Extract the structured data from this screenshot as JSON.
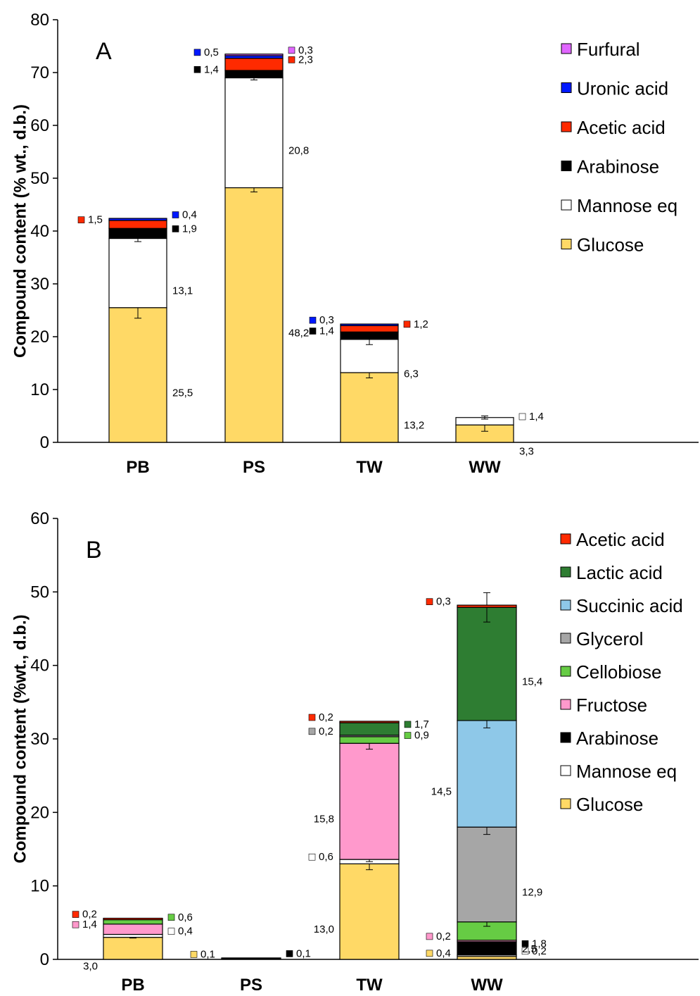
{
  "chart_data": [
    {
      "type": "bar",
      "stacked": true,
      "panel": "A",
      "ylabel": "Compound content (% wt., d.b.)",
      "ylim": [
        0,
        80
      ],
      "yticks": [
        0,
        10,
        20,
        30,
        40,
        50,
        60,
        70,
        80
      ],
      "categories": [
        "PB",
        "PS",
        "TW",
        "WW"
      ],
      "legend_position": "right",
      "legend_order": [
        "Furfural",
        "Uronic acid",
        "Acetic acid",
        "Arabinose",
        "Mannose eq",
        "Glucose"
      ],
      "series": [
        {
          "name": "Glucose",
          "color": "#FFD966",
          "values": [
            25.5,
            48.2,
            13.2,
            3.3
          ],
          "labels": [
            "25,5",
            "48,2",
            "13,2",
            "3,3"
          ],
          "errors": [
            2.0,
            0.8,
            1.0,
            1.2
          ]
        },
        {
          "name": "Mannose eq",
          "color": "#FFFFFF",
          "values": [
            13.1,
            20.8,
            6.3,
            1.4
          ],
          "labels": [
            "13,1",
            "20,8",
            "6,3",
            "1,4"
          ],
          "errors": [
            0.6,
            0.4,
            1.0,
            0.3
          ]
        },
        {
          "name": "Arabinose",
          "color": "#000000",
          "values": [
            1.9,
            1.4,
            1.4,
            0
          ],
          "labels": [
            "1,9",
            "1,4",
            "1,4",
            ""
          ],
          "errors": [
            0,
            0,
            0,
            0
          ]
        },
        {
          "name": "Acetic acid",
          "color": "#FF2A00",
          "values": [
            1.5,
            2.3,
            1.2,
            0
          ],
          "labels": [
            "1,5",
            "2,3",
            "1,2",
            ""
          ],
          "errors": [
            0,
            0,
            0,
            0
          ]
        },
        {
          "name": "Uronic acid",
          "color": "#0019FF",
          "values": [
            0.4,
            0.5,
            0.3,
            0
          ],
          "labels": [
            "0,4",
            "0,5",
            "0,3",
            ""
          ],
          "errors": [
            0,
            0,
            0,
            0
          ]
        },
        {
          "name": "Furfural",
          "color": "#E066FF",
          "values": [
            0,
            0.3,
            0,
            0
          ],
          "labels": [
            "",
            "0,3",
            "",
            ""
          ],
          "errors": [
            0,
            0,
            0,
            0
          ]
        }
      ]
    },
    {
      "type": "bar",
      "stacked": true,
      "panel": "B",
      "ylabel": "Compound content (%wt., d.b.)",
      "ylim": [
        0,
        60
      ],
      "yticks": [
        0,
        10,
        20,
        30,
        40,
        50,
        60
      ],
      "categories": [
        "PB",
        "PS",
        "TW",
        "WW"
      ],
      "legend_position": "right",
      "legend_order": [
        "Acetic acid",
        "Lactic acid",
        "Succinic acid",
        "Glycerol",
        "Cellobiose",
        "Fructose",
        "Arabinose",
        "Mannose eq",
        "Glucose"
      ],
      "series": [
        {
          "name": "Glucose",
          "color": "#FFD966",
          "values": [
            3.0,
            0.1,
            13.0,
            0.4
          ],
          "labels": [
            "3,0",
            "0,1",
            "13,0",
            "0,4"
          ],
          "errors": [
            0.1,
            0,
            0.8,
            0
          ]
        },
        {
          "name": "Mannose eq",
          "color": "#FFFFFF",
          "values": [
            0.4,
            0,
            0.6,
            0.2
          ],
          "labels": [
            "0,4",
            "",
            "0,6",
            "0,2"
          ],
          "errors": [
            0,
            0,
            0.3,
            0
          ]
        },
        {
          "name": "Arabinose",
          "color": "#000000",
          "values": [
            0,
            0.1,
            0,
            1.8
          ],
          "labels": [
            "",
            "0,1",
            "",
            "1,8"
          ],
          "errors": [
            0,
            0,
            0,
            0
          ]
        },
        {
          "name": "Fructose",
          "color": "#FF99CC",
          "values": [
            1.4,
            0,
            15.8,
            0.2
          ],
          "labels": [
            "1,4",
            "",
            "15,8",
            "0,2"
          ],
          "errors": [
            0,
            0,
            0.8,
            0
          ]
        },
        {
          "name": "Cellobiose",
          "color": "#66CC44",
          "values": [
            0.6,
            0,
            0.9,
            2.5
          ],
          "labels": [
            "0,6",
            "",
            "0,9",
            "2,5"
          ],
          "errors": [
            0,
            0,
            0,
            0.6
          ]
        },
        {
          "name": "Glycerol",
          "color": "#A6A6A6",
          "values": [
            0,
            0,
            0.2,
            12.9
          ],
          "labels": [
            "",
            "",
            "0,2",
            "12,9"
          ],
          "errors": [
            0,
            0,
            0,
            1.0
          ]
        },
        {
          "name": "Succinic acid",
          "color": "#8EC8E8",
          "values": [
            0,
            0,
            0,
            14.5
          ],
          "labels": [
            "",
            "",
            "",
            "14,5"
          ],
          "errors": [
            0,
            0,
            0,
            1.0
          ]
        },
        {
          "name": "Lactic acid",
          "color": "#2E7D32",
          "values": [
            0,
            0,
            1.7,
            15.4
          ],
          "labels": [
            "",
            "",
            "1,7",
            "15,4"
          ],
          "errors": [
            0,
            0,
            0,
            2.0
          ]
        },
        {
          "name": "Acetic acid",
          "color": "#FF2A00",
          "values": [
            0.2,
            0,
            0.2,
            0.3
          ],
          "labels": [
            "0,2",
            "",
            "0,2",
            "0,3"
          ],
          "errors": [
            0,
            0,
            0,
            0
          ]
        }
      ]
    }
  ]
}
